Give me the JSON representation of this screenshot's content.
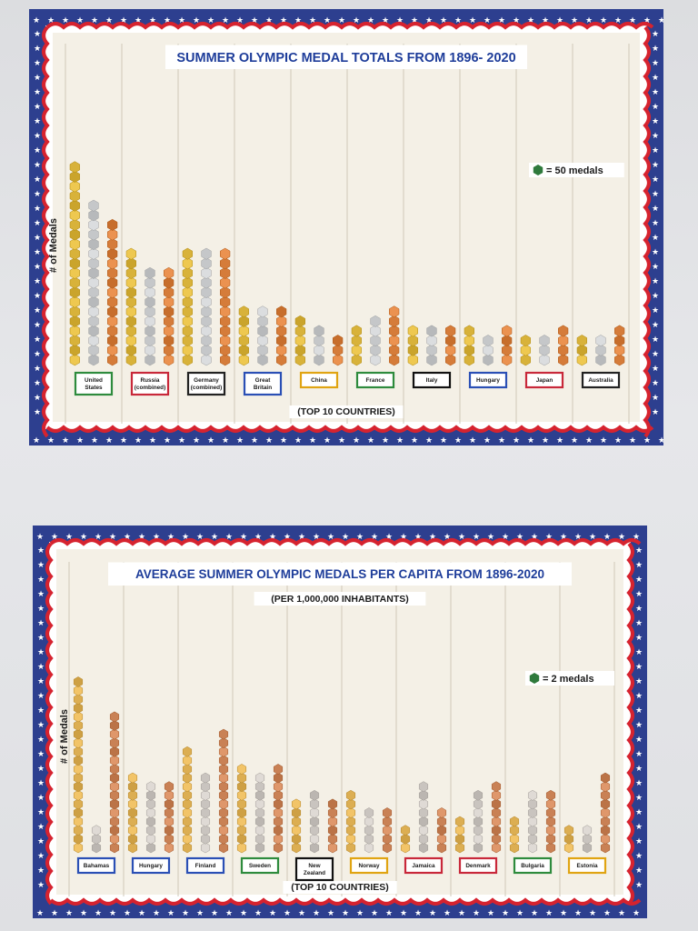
{
  "chart_data": [
    {
      "type": "bar",
      "title": "SUMMER OLYMPIC MEDAL TOTALS FROM 1896- 2020",
      "ylabel": "# of Medals",
      "xlabel": "(TOP 10 COUNTRIES)",
      "legend_text": "= 50 medals",
      "legend_color": "#2f7a3c",
      "medals_per_hex": 50,
      "categories": [
        "United\nStates",
        "Russia\n(combined)",
        "Germany\n(combined)",
        "Great\nBritain",
        "China",
        "France",
        "Italy",
        "Hungary",
        "Japan",
        "Australia"
      ],
      "category_box_colors": [
        "#2e8b3d",
        "#c8283a",
        "#222222",
        "#2a4fb5",
        "#e0a412",
        "#2e8b3d",
        "#111111",
        "#2a4fb5",
        "#c8283a",
        "#222222"
      ],
      "series": [
        {
          "name": "Gold",
          "color": "#d8b23a",
          "values": [
            1061,
            608,
            582,
            285,
            262,
            223,
            217,
            181,
            169,
            164
          ]
        },
        {
          "name": "Silver",
          "color": "#c5c7c9",
          "values": [
            830,
            515,
            600,
            316,
            199,
            251,
            188,
            154,
            150,
            173
          ]
        },
        {
          "name": "Bronze",
          "color": "#d57c3a",
          "values": [
            738,
            501,
            624,
            315,
            173,
            277,
            213,
            176,
            178,
            210
          ]
        }
      ]
    },
    {
      "type": "bar",
      "title": "AVERAGE  SUMMER OLYMPIC  MEDALS  PER CAPITA  FROM  1896-2020",
      "subtitle": "(PER 1,000,000 INHABITANTS)",
      "ylabel": "# of Medals",
      "xlabel": "(TOP 10 COUNTRIES)",
      "legend_text": "= 2 medals",
      "legend_color": "#2f7a3c",
      "medals_per_hex": 2,
      "categories": [
        "Bahamas",
        "Hungary",
        "Finland",
        "Sweden",
        "New\nZealand",
        "Norway",
        "Jamaica",
        "Denmark",
        "Bulgaria",
        "Estonia"
      ],
      "category_box_colors": [
        "#2a4fb5",
        "#2a4fb5",
        "#2a4fb5",
        "#2e8b3d",
        "#111111",
        "#e0a412",
        "#c8283a",
        "#c8283a",
        "#2e8b3d",
        "#e0a412"
      ],
      "series": [
        {
          "name": "Gold",
          "color": "#dcae52",
          "values": [
            40,
            18,
            24,
            20,
            12,
            14,
            6,
            8,
            8,
            6
          ]
        },
        {
          "name": "Silver",
          "color": "#c9c4bf",
          "values": [
            6,
            16,
            18,
            18,
            14,
            10,
            16,
            14,
            14,
            6
          ]
        },
        {
          "name": "Bronze",
          "color": "#c98155",
          "values": [
            32,
            16,
            28,
            20,
            12,
            10,
            10,
            16,
            14,
            18
          ]
        }
      ]
    }
  ]
}
